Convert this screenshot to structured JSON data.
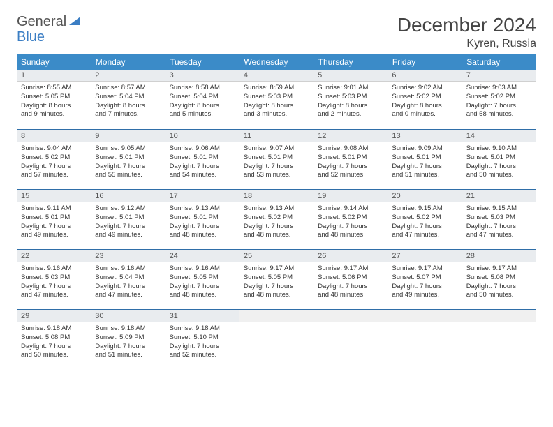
{
  "brand": {
    "word1": "General",
    "word2": "Blue"
  },
  "title": "December 2024",
  "location": "Kyren, Russia",
  "day_headers": [
    "Sunday",
    "Monday",
    "Tuesday",
    "Wednesday",
    "Thursday",
    "Friday",
    "Saturday"
  ],
  "colors": {
    "header_bg": "#3b8bc8",
    "header_fg": "#ffffff",
    "daynum_bg": "#e9ecef",
    "week_rule": "#2f6ea8",
    "text": "#333333",
    "brand_blue": "#3b7ec4"
  },
  "typography": {
    "title_fontsize_pt": 21,
    "location_fontsize_pt": 12,
    "th_fontsize_pt": 9,
    "cell_fontsize_pt": 7
  },
  "weeks": [
    [
      {
        "n": "1",
        "sr": "8:55 AM",
        "ss": "5:05 PM",
        "dh": "8",
        "dm": "9"
      },
      {
        "n": "2",
        "sr": "8:57 AM",
        "ss": "5:04 PM",
        "dh": "8",
        "dm": "7"
      },
      {
        "n": "3",
        "sr": "8:58 AM",
        "ss": "5:04 PM",
        "dh": "8",
        "dm": "5"
      },
      {
        "n": "4",
        "sr": "8:59 AM",
        "ss": "5:03 PM",
        "dh": "8",
        "dm": "3"
      },
      {
        "n": "5",
        "sr": "9:01 AM",
        "ss": "5:03 PM",
        "dh": "8",
        "dm": "2"
      },
      {
        "n": "6",
        "sr": "9:02 AM",
        "ss": "5:02 PM",
        "dh": "8",
        "dm": "0"
      },
      {
        "n": "7",
        "sr": "9:03 AM",
        "ss": "5:02 PM",
        "dh": "7",
        "dm": "58"
      }
    ],
    [
      {
        "n": "8",
        "sr": "9:04 AM",
        "ss": "5:02 PM",
        "dh": "7",
        "dm": "57"
      },
      {
        "n": "9",
        "sr": "9:05 AM",
        "ss": "5:01 PM",
        "dh": "7",
        "dm": "55"
      },
      {
        "n": "10",
        "sr": "9:06 AM",
        "ss": "5:01 PM",
        "dh": "7",
        "dm": "54"
      },
      {
        "n": "11",
        "sr": "9:07 AM",
        "ss": "5:01 PM",
        "dh": "7",
        "dm": "53"
      },
      {
        "n": "12",
        "sr": "9:08 AM",
        "ss": "5:01 PM",
        "dh": "7",
        "dm": "52"
      },
      {
        "n": "13",
        "sr": "9:09 AM",
        "ss": "5:01 PM",
        "dh": "7",
        "dm": "51"
      },
      {
        "n": "14",
        "sr": "9:10 AM",
        "ss": "5:01 PM",
        "dh": "7",
        "dm": "50"
      }
    ],
    [
      {
        "n": "15",
        "sr": "9:11 AM",
        "ss": "5:01 PM",
        "dh": "7",
        "dm": "49"
      },
      {
        "n": "16",
        "sr": "9:12 AM",
        "ss": "5:01 PM",
        "dh": "7",
        "dm": "49"
      },
      {
        "n": "17",
        "sr": "9:13 AM",
        "ss": "5:01 PM",
        "dh": "7",
        "dm": "48"
      },
      {
        "n": "18",
        "sr": "9:13 AM",
        "ss": "5:02 PM",
        "dh": "7",
        "dm": "48"
      },
      {
        "n": "19",
        "sr": "9:14 AM",
        "ss": "5:02 PM",
        "dh": "7",
        "dm": "48"
      },
      {
        "n": "20",
        "sr": "9:15 AM",
        "ss": "5:02 PM",
        "dh": "7",
        "dm": "47"
      },
      {
        "n": "21",
        "sr": "9:15 AM",
        "ss": "5:03 PM",
        "dh": "7",
        "dm": "47"
      }
    ],
    [
      {
        "n": "22",
        "sr": "9:16 AM",
        "ss": "5:03 PM",
        "dh": "7",
        "dm": "47"
      },
      {
        "n": "23",
        "sr": "9:16 AM",
        "ss": "5:04 PM",
        "dh": "7",
        "dm": "47"
      },
      {
        "n": "24",
        "sr": "9:16 AM",
        "ss": "5:05 PM",
        "dh": "7",
        "dm": "48"
      },
      {
        "n": "25",
        "sr": "9:17 AM",
        "ss": "5:05 PM",
        "dh": "7",
        "dm": "48"
      },
      {
        "n": "26",
        "sr": "9:17 AM",
        "ss": "5:06 PM",
        "dh": "7",
        "dm": "48"
      },
      {
        "n": "27",
        "sr": "9:17 AM",
        "ss": "5:07 PM",
        "dh": "7",
        "dm": "49"
      },
      {
        "n": "28",
        "sr": "9:17 AM",
        "ss": "5:08 PM",
        "dh": "7",
        "dm": "50"
      }
    ],
    [
      {
        "n": "29",
        "sr": "9:18 AM",
        "ss": "5:08 PM",
        "dh": "7",
        "dm": "50"
      },
      {
        "n": "30",
        "sr": "9:18 AM",
        "ss": "5:09 PM",
        "dh": "7",
        "dm": "51"
      },
      {
        "n": "31",
        "sr": "9:18 AM",
        "ss": "5:10 PM",
        "dh": "7",
        "dm": "52"
      },
      null,
      null,
      null,
      null
    ]
  ],
  "labels": {
    "sunrise_prefix": "Sunrise: ",
    "sunset_prefix": "Sunset: ",
    "daylight_prefix": "Daylight: ",
    "hours_word": " hours",
    "and_word": "and ",
    "minutes_word": " minutes."
  }
}
